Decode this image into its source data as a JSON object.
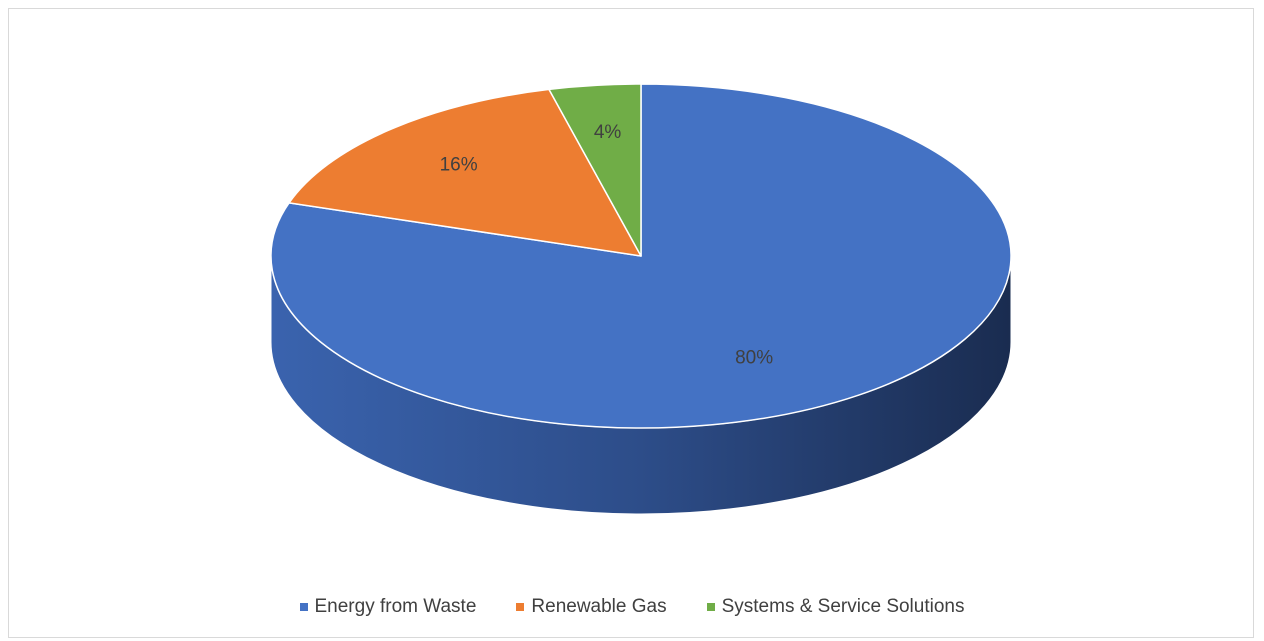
{
  "chart_data": {
    "type": "pie",
    "categories": [
      "Energy from Waste",
      "Renewable Gas",
      "Systems & Service Solutions"
    ],
    "values": [
      80,
      16,
      4
    ],
    "data_labels": [
      "80%",
      "16%",
      "4%"
    ],
    "colors": [
      "#4472C4",
      "#ED7D31",
      "#70AD47"
    ],
    "legend_position": "bottom",
    "style": "3d"
  }
}
